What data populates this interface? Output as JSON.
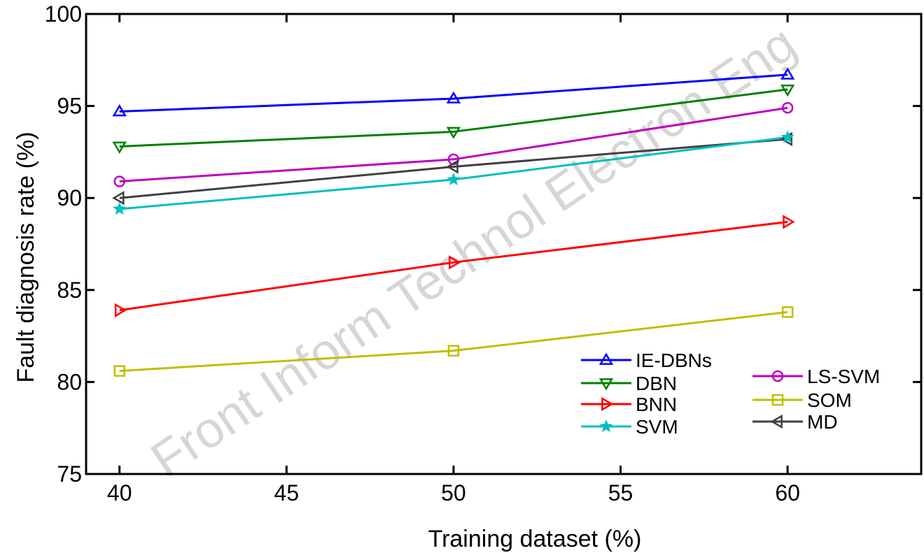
{
  "chart_data": {
    "type": "line",
    "xlabel": "Training dataset (%)",
    "ylabel": "Fault diagnosis rate (%)",
    "xlim": [
      39,
      64
    ],
    "ylim": [
      75,
      100
    ],
    "xticks": [
      40,
      45,
      50,
      55,
      60
    ],
    "yticks": [
      75,
      80,
      85,
      90,
      95,
      100
    ],
    "x": [
      40,
      50,
      60
    ],
    "grid": false,
    "legend_position": "bottom-right",
    "series": [
      {
        "name": "IE-DBNs",
        "color": "#0000ff",
        "marker": "triangle-up",
        "values": [
          94.7,
          95.4,
          96.7
        ]
      },
      {
        "name": "DBN",
        "color": "#008000",
        "marker": "triangle-down",
        "values": [
          92.8,
          93.6,
          95.9
        ]
      },
      {
        "name": "LS-SVM",
        "color": "#bf00bf",
        "marker": "circle",
        "values": [
          90.9,
          92.1,
          94.9
        ]
      },
      {
        "name": "MD",
        "color": "#404040",
        "marker": "triangle-left",
        "values": [
          90.0,
          91.7,
          93.2
        ]
      },
      {
        "name": "SVM",
        "color": "#00bfbf",
        "marker": "star",
        "values": [
          89.4,
          91.0,
          93.3
        ]
      },
      {
        "name": "BNN",
        "color": "#ff0000",
        "marker": "triangle-right",
        "values": [
          83.9,
          86.5,
          88.7
        ]
      },
      {
        "name": "SOM",
        "color": "#bfbf00",
        "marker": "square",
        "values": [
          80.6,
          81.7,
          83.8
        ]
      }
    ],
    "legend_columns": [
      [
        "IE-DBNs",
        "DBN",
        "BNN",
        "SVM"
      ],
      [
        "LS-SVM",
        "SOM",
        "MD"
      ]
    ]
  },
  "watermark": "Front Inform Technol Electron Eng"
}
